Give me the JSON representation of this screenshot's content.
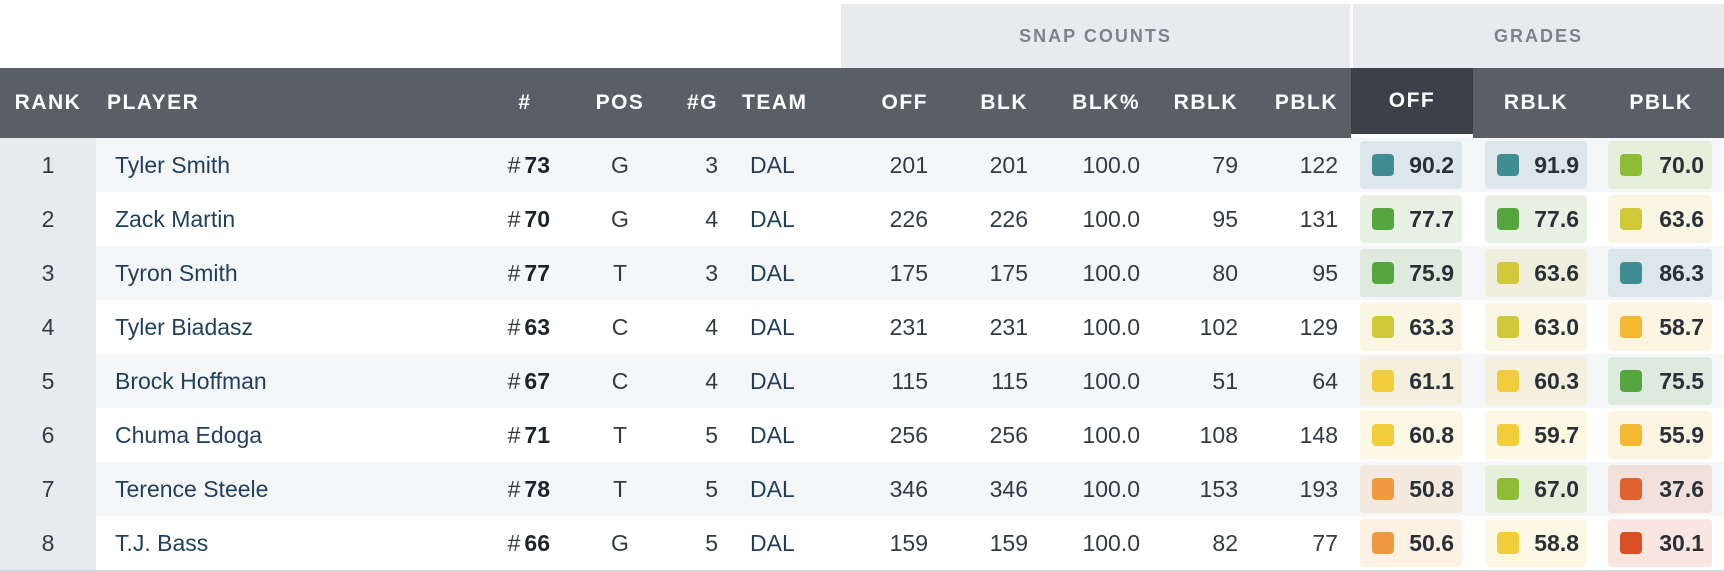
{
  "groups": {
    "snap_counts": "SNAP COUNTS",
    "grades": "GRADES"
  },
  "headers": {
    "rank": "RANK",
    "player": "PLAYER",
    "jersey": "#",
    "pos": "POS",
    "games": "#G",
    "team": "TEAM",
    "off": "OFF",
    "blk": "BLK",
    "blk_pct": "BLK%",
    "rblk": "RBLK",
    "pblk": "PBLK",
    "grade_off": "OFF",
    "grade_rblk": "RBLK",
    "grade_pblk": "PBLK"
  },
  "active_sort_column": "grade_off",
  "jersey_prefix": "#",
  "grade_colors": {
    "teal": "#3f8c92",
    "green": "#56a640",
    "lime": "#8cbd35",
    "olive_yellow": "#d2c93a",
    "yellow": "#f1cd3c",
    "amber": "#f3b834",
    "orange_dotted": "#ef9a3e",
    "orange_red": "#e0622e",
    "red": "#d85126"
  },
  "rows": [
    {
      "rank": "1",
      "player": "Tyler Smith",
      "jersey": "73",
      "pos": "G",
      "games": "3",
      "team": "DAL",
      "off": "201",
      "blk": "201",
      "blk_pct": "100.0",
      "rblk": "79",
      "pblk": "122",
      "grades": [
        {
          "value": "90.2",
          "color": "teal"
        },
        {
          "value": "91.9",
          "color": "teal"
        },
        {
          "value": "70.0",
          "color": "lime"
        }
      ]
    },
    {
      "rank": "2",
      "player": "Zack Martin",
      "jersey": "70",
      "pos": "G",
      "games": "4",
      "team": "DAL",
      "off": "226",
      "blk": "226",
      "blk_pct": "100.0",
      "rblk": "95",
      "pblk": "131",
      "grades": [
        {
          "value": "77.7",
          "color": "green"
        },
        {
          "value": "77.6",
          "color": "green"
        },
        {
          "value": "63.6",
          "color": "olive_yellow"
        }
      ]
    },
    {
      "rank": "3",
      "player": "Tyron Smith",
      "jersey": "77",
      "pos": "T",
      "games": "3",
      "team": "DAL",
      "off": "175",
      "blk": "175",
      "blk_pct": "100.0",
      "rblk": "80",
      "pblk": "95",
      "grades": [
        {
          "value": "75.9",
          "color": "green"
        },
        {
          "value": "63.6",
          "color": "olive_yellow"
        },
        {
          "value": "86.3",
          "color": "teal"
        }
      ]
    },
    {
      "rank": "4",
      "player": "Tyler Biadasz",
      "jersey": "63",
      "pos": "C",
      "games": "4",
      "team": "DAL",
      "off": "231",
      "blk": "231",
      "blk_pct": "100.0",
      "rblk": "102",
      "pblk": "129",
      "grades": [
        {
          "value": "63.3",
          "color": "olive_yellow"
        },
        {
          "value": "63.0",
          "color": "olive_yellow"
        },
        {
          "value": "58.7",
          "color": "amber"
        }
      ]
    },
    {
      "rank": "5",
      "player": "Brock Hoffman",
      "jersey": "67",
      "pos": "C",
      "games": "4",
      "team": "DAL",
      "off": "115",
      "blk": "115",
      "blk_pct": "100.0",
      "rblk": "51",
      "pblk": "64",
      "grades": [
        {
          "value": "61.1",
          "color": "yellow"
        },
        {
          "value": "60.3",
          "color": "yellow"
        },
        {
          "value": "75.5",
          "color": "green"
        }
      ]
    },
    {
      "rank": "6",
      "player": "Chuma Edoga",
      "jersey": "71",
      "pos": "T",
      "games": "5",
      "team": "DAL",
      "off": "256",
      "blk": "256",
      "blk_pct": "100.0",
      "rblk": "108",
      "pblk": "148",
      "grades": [
        {
          "value": "60.8",
          "color": "yellow"
        },
        {
          "value": "59.7",
          "color": "yellow"
        },
        {
          "value": "55.9",
          "color": "amber"
        }
      ]
    },
    {
      "rank": "7",
      "player": "Terence Steele",
      "jersey": "78",
      "pos": "T",
      "games": "5",
      "team": "DAL",
      "off": "346",
      "blk": "346",
      "blk_pct": "100.0",
      "rblk": "153",
      "pblk": "193",
      "grades": [
        {
          "value": "50.8",
          "color": "orange_dotted"
        },
        {
          "value": "67.0",
          "color": "lime"
        },
        {
          "value": "37.6",
          "color": "orange_red"
        }
      ]
    },
    {
      "rank": "8",
      "player": "T.J. Bass",
      "jersey": "66",
      "pos": "G",
      "games": "5",
      "team": "DAL",
      "off": "159",
      "blk": "159",
      "blk_pct": "100.0",
      "rblk": "82",
      "pblk": "77",
      "grades": [
        {
          "value": "50.6",
          "color": "orange_dotted"
        },
        {
          "value": "58.8",
          "color": "yellow"
        },
        {
          "value": "30.1",
          "color": "red"
        }
      ]
    }
  ]
}
